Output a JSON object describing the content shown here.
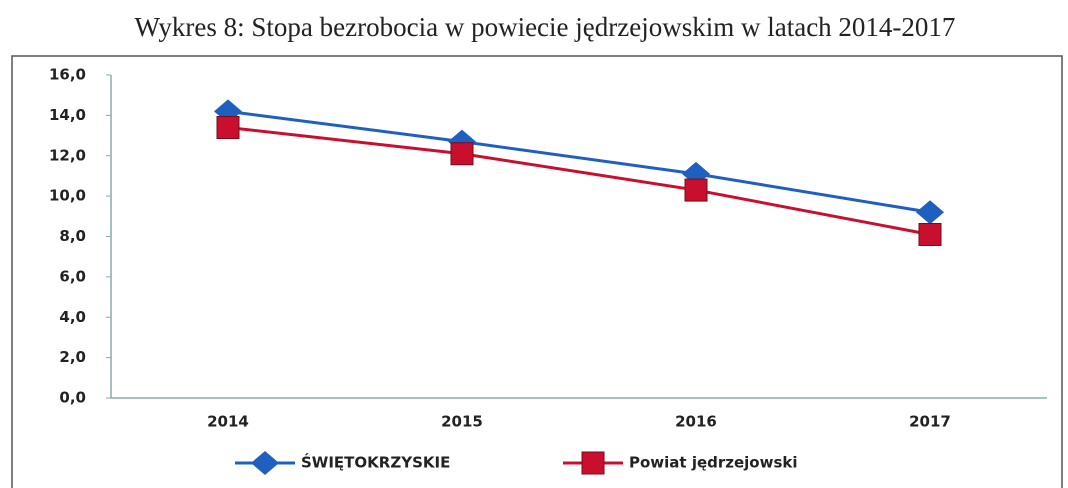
{
  "chart_data": {
    "type": "line",
    "title": "Wykres 8: Stopa bezrobocia w powiecie jędrzejowskim w latach 2014-2017",
    "categories": [
      "2014",
      "2015",
      "2016",
      "2017"
    ],
    "series": [
      {
        "name": "ŚWIĘTOKRZYSKIE",
        "color": "#1f5fbf",
        "marker": "diamond",
        "values": [
          14.2,
          12.7,
          11.1,
          9.2
        ]
      },
      {
        "name": "Powiat jędrzejowski",
        "color": "#c8102e",
        "marker": "square",
        "values": [
          13.4,
          12.1,
          10.3,
          8.1
        ]
      }
    ],
    "ylim": [
      0,
      16
    ],
    "yticks": [
      {
        "value": 0,
        "label": "0,0"
      },
      {
        "value": 2,
        "label": "2,0"
      },
      {
        "value": 4,
        "label": "4,0"
      },
      {
        "value": 6,
        "label": "6,0"
      },
      {
        "value": 8,
        "label": "8,0"
      },
      {
        "value": 10,
        "label": "10,0"
      },
      {
        "value": 12,
        "label": "12,0"
      },
      {
        "value": 14,
        "label": "14,0"
      },
      {
        "value": 16,
        "label": "16,0"
      }
    ],
    "grid": false,
    "legend": "bottom"
  }
}
